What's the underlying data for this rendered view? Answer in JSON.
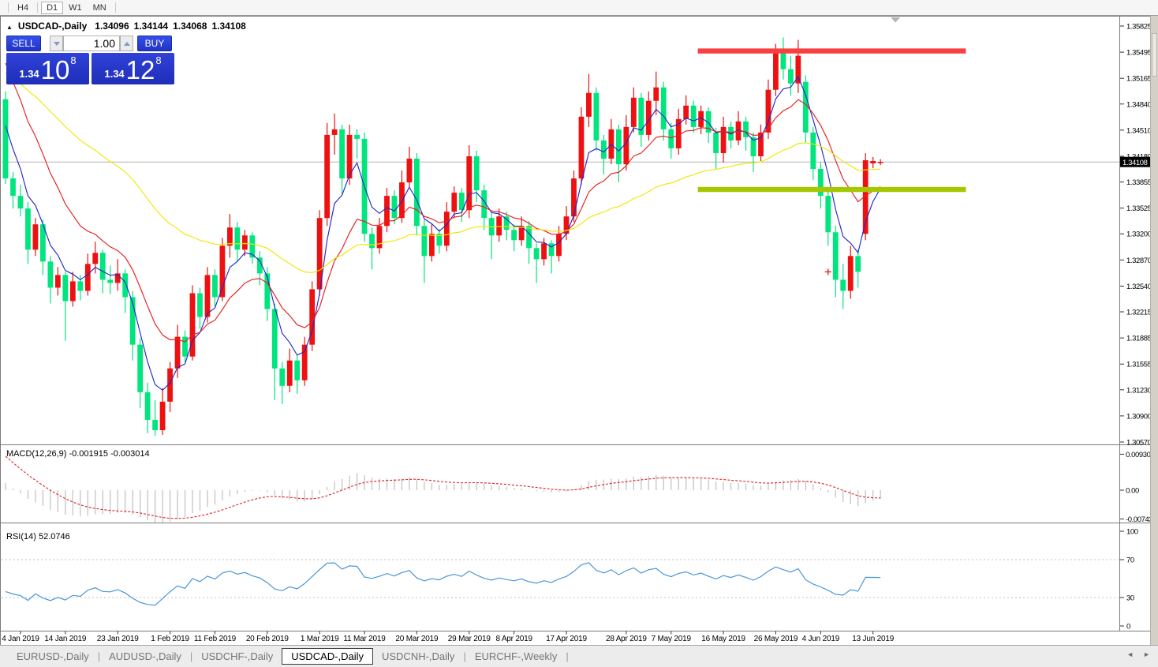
{
  "toolbar": {
    "timeframes": [
      {
        "label": "H4",
        "active": false
      },
      {
        "label": "D1",
        "active": true
      },
      {
        "label": "W1",
        "active": false
      },
      {
        "label": "MN",
        "active": false
      }
    ]
  },
  "chart_header": {
    "collapse_icon": "▲",
    "symbol": "USDCAD-,Daily",
    "open": "1.34096",
    "high": "1.34144",
    "low": "1.34068",
    "close": "1.34108"
  },
  "trade_panel": {
    "sell_label": "SELL",
    "buy_label": "BUY",
    "volume": "1.00",
    "sell_price_small": "1.34",
    "sell_price_big": "10",
    "sell_price_sup": "8",
    "buy_price_small": "1.34",
    "buy_price_big": "12",
    "buy_price_sup": "8"
  },
  "indicator_labels": {
    "macd": "MACD(12,26,9) -0.001915 -0.003014",
    "rsi": "RSI(14) 52.0746"
  },
  "tabs": {
    "items": [
      {
        "label": "EURUSD-,Daily",
        "active": false
      },
      {
        "label": "AUDUSD-,Daily",
        "active": false
      },
      {
        "label": "USDCHF-,Daily",
        "active": false
      },
      {
        "label": "USDCAD-,Daily",
        "active": true
      },
      {
        "label": "USDCNH-,Daily",
        "active": false
      },
      {
        "label": "EURCHF-,Weekly",
        "active": false
      }
    ],
    "separator": "|"
  },
  "tab_scroll": {
    "left_icon": "◄",
    "right_icon": "►"
  },
  "colors": {
    "bull_candle": "#ee1111",
    "bear_candle": "#00e57d",
    "ma_fast": "#2228c8",
    "ma_mid": "#e81f1f",
    "ma_slow": "#f0e800",
    "resistance_band": "#f84040",
    "support_band": "#a5c700",
    "macd_histogram": "#c4c4c4",
    "macd_signal": "#e02020",
    "rsi_line": "#4a96d8",
    "bid_line": "#b4b4b4",
    "tag_bg": "#000000",
    "tag_text": "#ffffff",
    "panel_blue": "#2638d6"
  },
  "chart_data": {
    "type": "candlestick",
    "symbol": "USDCAD-,Daily",
    "timeframe": "Daily",
    "current_price": 1.34108,
    "current_price_label": "1.34108",
    "price_axis_ticks": [
      1.35825,
      1.35495,
      1.35165,
      1.3484,
      1.3451,
      1.3418,
      1.33855,
      1.33525,
      1.332,
      1.3287,
      1.3254,
      1.32215,
      1.31885,
      1.31555,
      1.3123,
      1.309,
      1.3057
    ],
    "date_labels": [
      {
        "label": "4 Jan 2019",
        "bar": 2
      },
      {
        "label": "14 Jan 2019",
        "bar": 8
      },
      {
        "label": "23 Jan 2019",
        "bar": 15
      },
      {
        "label": "1 Feb 2019",
        "bar": 22
      },
      {
        "label": "11 Feb 2019",
        "bar": 28
      },
      {
        "label": "20 Feb 2019",
        "bar": 35
      },
      {
        "label": "1 Mar 2019",
        "bar": 42
      },
      {
        "label": "11 Mar 2019",
        "bar": 48
      },
      {
        "label": "20 Mar 2019",
        "bar": 55
      },
      {
        "label": "29 Mar 2019",
        "bar": 62
      },
      {
        "label": "8 Apr 2019",
        "bar": 68
      },
      {
        "label": "17 Apr 2019",
        "bar": 75
      },
      {
        "label": "28 Apr 2019",
        "bar": 83
      },
      {
        "label": "7 May 2019",
        "bar": 89
      },
      {
        "label": "16 May 2019",
        "bar": 96
      },
      {
        "label": "26 May 2019",
        "bar": 103
      },
      {
        "label": "4 Jun 2019",
        "bar": 109
      },
      {
        "label": "13 Jun 2019",
        "bar": 116
      }
    ],
    "candles": [
      [
        1.349,
        1.35,
        1.3383,
        1.339
      ],
      [
        1.339,
        1.3398,
        1.3352,
        1.3368
      ],
      [
        1.3368,
        1.3382,
        1.3342,
        1.3352
      ],
      [
        1.3352,
        1.336,
        1.3282,
        1.33
      ],
      [
        1.33,
        1.334,
        1.3292,
        1.3332
      ],
      [
        1.3332,
        1.3338,
        1.3268,
        1.3285
      ],
      [
        1.3285,
        1.3292,
        1.3232,
        1.3252
      ],
      [
        1.3252,
        1.3278,
        1.3242,
        1.3268
      ],
      [
        1.3268,
        1.3272,
        1.3185,
        1.3235
      ],
      [
        1.3235,
        1.3272,
        1.3228,
        1.326
      ],
      [
        1.326,
        1.3268,
        1.3236,
        1.3248
      ],
      [
        1.3248,
        1.3295,
        1.3242,
        1.3282
      ],
      [
        1.3282,
        1.331,
        1.327,
        1.3296
      ],
      [
        1.3296,
        1.33,
        1.3245,
        1.3262
      ],
      [
        1.3262,
        1.328,
        1.3244,
        1.3258
      ],
      [
        1.3258,
        1.3288,
        1.3248,
        1.327
      ],
      [
        1.327,
        1.3275,
        1.322,
        1.324
      ],
      [
        1.324,
        1.3248,
        1.316,
        1.318
      ],
      [
        1.318,
        1.3188,
        1.31,
        1.312
      ],
      [
        1.312,
        1.3132,
        1.3068,
        1.3085
      ],
      [
        1.3085,
        1.311,
        1.3065,
        1.3072
      ],
      [
        1.3072,
        1.3125,
        1.3066,
        1.3108
      ],
      [
        1.3108,
        1.3158,
        1.3095,
        1.315
      ],
      [
        1.315,
        1.3205,
        1.3138,
        1.319
      ],
      [
        1.319,
        1.3198,
        1.3158,
        1.3165
      ],
      [
        1.3165,
        1.3255,
        1.316,
        1.3245
      ],
      [
        1.3245,
        1.3252,
        1.32,
        1.3215
      ],
      [
        1.3215,
        1.3278,
        1.3208,
        1.3268
      ],
      [
        1.3268,
        1.3275,
        1.3228,
        1.324
      ],
      [
        1.324,
        1.3315,
        1.3235,
        1.3305
      ],
      [
        1.3305,
        1.3345,
        1.329,
        1.3328
      ],
      [
        1.3328,
        1.3335,
        1.3285,
        1.33
      ],
      [
        1.33,
        1.3325,
        1.3292,
        1.3318
      ],
      [
        1.3318,
        1.3322,
        1.3282,
        1.329
      ],
      [
        1.329,
        1.3298,
        1.3255,
        1.327
      ],
      [
        1.327,
        1.3278,
        1.321,
        1.3225
      ],
      [
        1.3225,
        1.3232,
        1.311,
        1.315
      ],
      [
        1.315,
        1.3158,
        1.3105,
        1.3128
      ],
      [
        1.3128,
        1.3175,
        1.312,
        1.316
      ],
      [
        1.316,
        1.3166,
        1.3118,
        1.3135
      ],
      [
        1.3135,
        1.319,
        1.3128,
        1.318
      ],
      [
        1.318,
        1.326,
        1.3172,
        1.325
      ],
      [
        1.325,
        1.335,
        1.3242,
        1.334
      ],
      [
        1.334,
        1.346,
        1.333,
        1.3445
      ],
      [
        1.3445,
        1.3472,
        1.342,
        1.3452
      ],
      [
        1.3452,
        1.3458,
        1.337,
        1.339
      ],
      [
        1.339,
        1.3458,
        1.3382,
        1.3445
      ],
      [
        1.3445,
        1.3452,
        1.3415,
        1.344
      ],
      [
        1.344,
        1.3448,
        1.331,
        1.332
      ],
      [
        1.332,
        1.3328,
        1.3275,
        1.3302
      ],
      [
        1.3302,
        1.334,
        1.3295,
        1.333
      ],
      [
        1.333,
        1.3378,
        1.3322,
        1.3368
      ],
      [
        1.3368,
        1.3375,
        1.3332,
        1.334
      ],
      [
        1.334,
        1.34,
        1.3334,
        1.3385
      ],
      [
        1.3385,
        1.343,
        1.3378,
        1.3415
      ],
      [
        1.3415,
        1.3422,
        1.3318,
        1.333
      ],
      [
        1.333,
        1.3338,
        1.3258,
        1.3292
      ],
      [
        1.3292,
        1.3332,
        1.3285,
        1.332
      ],
      [
        1.332,
        1.3326,
        1.3295,
        1.3305
      ],
      [
        1.3305,
        1.336,
        1.3298,
        1.3348
      ],
      [
        1.3348,
        1.338,
        1.334,
        1.3372
      ],
      [
        1.3372,
        1.3378,
        1.3335,
        1.335
      ],
      [
        1.335,
        1.3432,
        1.334,
        1.3418
      ],
      [
        1.3418,
        1.3425,
        1.336,
        1.3375
      ],
      [
        1.3375,
        1.3382,
        1.3325,
        1.334
      ],
      [
        1.334,
        1.3346,
        1.3288,
        1.3318
      ],
      [
        1.3318,
        1.3352,
        1.331,
        1.3342
      ],
      [
        1.3342,
        1.3348,
        1.3312,
        1.3325
      ],
      [
        1.3325,
        1.3332,
        1.3298,
        1.3312
      ],
      [
        1.3312,
        1.3342,
        1.3305,
        1.333
      ],
      [
        1.333,
        1.3336,
        1.3282,
        1.3302
      ],
      [
        1.3302,
        1.3308,
        1.3258,
        1.3288
      ],
      [
        1.3288,
        1.3315,
        1.328,
        1.3308
      ],
      [
        1.3308,
        1.3312,
        1.327,
        1.3292
      ],
      [
        1.3292,
        1.333,
        1.3285,
        1.332
      ],
      [
        1.332,
        1.3355,
        1.3312,
        1.3342
      ],
      [
        1.3342,
        1.34,
        1.3335,
        1.339
      ],
      [
        1.339,
        1.348,
        1.3382,
        1.3468
      ],
      [
        1.3468,
        1.3522,
        1.3455,
        1.3498
      ],
      [
        1.3498,
        1.3505,
        1.3425,
        1.3438
      ],
      [
        1.3438,
        1.3445,
        1.3395,
        1.3415
      ],
      [
        1.3415,
        1.3465,
        1.3408,
        1.3452
      ],
      [
        1.3452,
        1.3458,
        1.3385,
        1.3408
      ],
      [
        1.3408,
        1.347,
        1.34,
        1.3455
      ],
      [
        1.3455,
        1.3505,
        1.3448,
        1.3492
      ],
      [
        1.3492,
        1.3498,
        1.343,
        1.3445
      ],
      [
        1.3445,
        1.35,
        1.3438,
        1.3488
      ],
      [
        1.3488,
        1.3525,
        1.347,
        1.3505
      ],
      [
        1.3505,
        1.3512,
        1.3438,
        1.3452
      ],
      [
        1.3452,
        1.346,
        1.3415,
        1.3428
      ],
      [
        1.3428,
        1.3478,
        1.342,
        1.3465
      ],
      [
        1.3465,
        1.3495,
        1.3458,
        1.3482
      ],
      [
        1.3482,
        1.3488,
        1.3448,
        1.3455
      ],
      [
        1.3455,
        1.3482,
        1.3446,
        1.3475
      ],
      [
        1.3475,
        1.348,
        1.3435,
        1.3448
      ],
      [
        1.3448,
        1.3454,
        1.3402,
        1.3422
      ],
      [
        1.3422,
        1.3468,
        1.341,
        1.3455
      ],
      [
        1.3455,
        1.3462,
        1.3428,
        1.3438
      ],
      [
        1.3438,
        1.3475,
        1.3432,
        1.3462
      ],
      [
        1.3462,
        1.3468,
        1.3425,
        1.3442
      ],
      [
        1.3442,
        1.3448,
        1.3398,
        1.3418
      ],
      [
        1.3418,
        1.3458,
        1.3412,
        1.3448
      ],
      [
        1.3448,
        1.3515,
        1.344,
        1.3502
      ],
      [
        1.3502,
        1.356,
        1.3494,
        1.3548
      ],
      [
        1.3548,
        1.3568,
        1.3515,
        1.3528
      ],
      [
        1.3528,
        1.3545,
        1.3495,
        1.351
      ],
      [
        1.351,
        1.3565,
        1.3498,
        1.3545
      ],
      [
        1.3512,
        1.352,
        1.3435,
        1.3448
      ],
      [
        1.3448,
        1.3455,
        1.3388,
        1.3402
      ],
      [
        1.3402,
        1.341,
        1.3352,
        1.3368
      ],
      [
        1.3368,
        1.3375,
        1.3305,
        1.3322
      ],
      [
        1.3322,
        1.333,
        1.324,
        1.3262
      ],
      [
        1.3262,
        1.3282,
        1.3225,
        1.3248
      ],
      [
        1.3248,
        1.3305,
        1.3238,
        1.3292
      ],
      [
        1.3292,
        1.33,
        1.3252,
        1.3272
      ],
      [
        1.332,
        1.3422,
        1.3312,
        1.3413
      ],
      [
        1.3409,
        1.3417,
        1.3403,
        1.3412
      ],
      [
        1.34096,
        1.34144,
        1.34068,
        1.34108
      ]
    ],
    "moving_averages": [
      {
        "name": "fast",
        "period": 5,
        "color": "#2228c8",
        "seed": 1.349
      },
      {
        "name": "mid",
        "period": 13,
        "color": "#e81f1f",
        "seed": 1.356
      },
      {
        "name": "slow",
        "period": 45,
        "color": "#f0e800",
        "seed": 1.353
      }
    ],
    "levels": {
      "resistance": {
        "price": 1.3551,
        "bar_start": 93,
        "bar_end": 128,
        "color": "#f84040"
      },
      "support": {
        "price": 1.3376,
        "bar_start": 93,
        "bar_end": 128,
        "color": "#a5c700"
      }
    },
    "markers": [
      {
        "bar": 110,
        "price": 1.3272,
        "glyph": "+",
        "color": "#f02020"
      }
    ],
    "shift_marker_bar": 119,
    "macd": {
      "fast": 12,
      "slow": 26,
      "signal": 9,
      "current": -0.001915,
      "current_signal": -0.003014,
      "seeds": {
        "fast_ema": 1.356,
        "slow_ema": 1.3525,
        "signal": 0.0105
      },
      "scale_ticks": [
        {
          "v": 0.009301,
          "label": "0.009301"
        },
        {
          "v": 0,
          "label": "0.00"
        },
        {
          "v": -0.007433,
          "label": "-0.007433"
        }
      ]
    },
    "rsi": {
      "period": 14,
      "current": 52.0746,
      "levels": [
        70,
        30
      ],
      "scale_ticks": [
        100,
        70,
        30,
        0
      ],
      "seeds": {
        "avg_gain": 0.0008,
        "avg_loss": 0.0014
      }
    }
  }
}
